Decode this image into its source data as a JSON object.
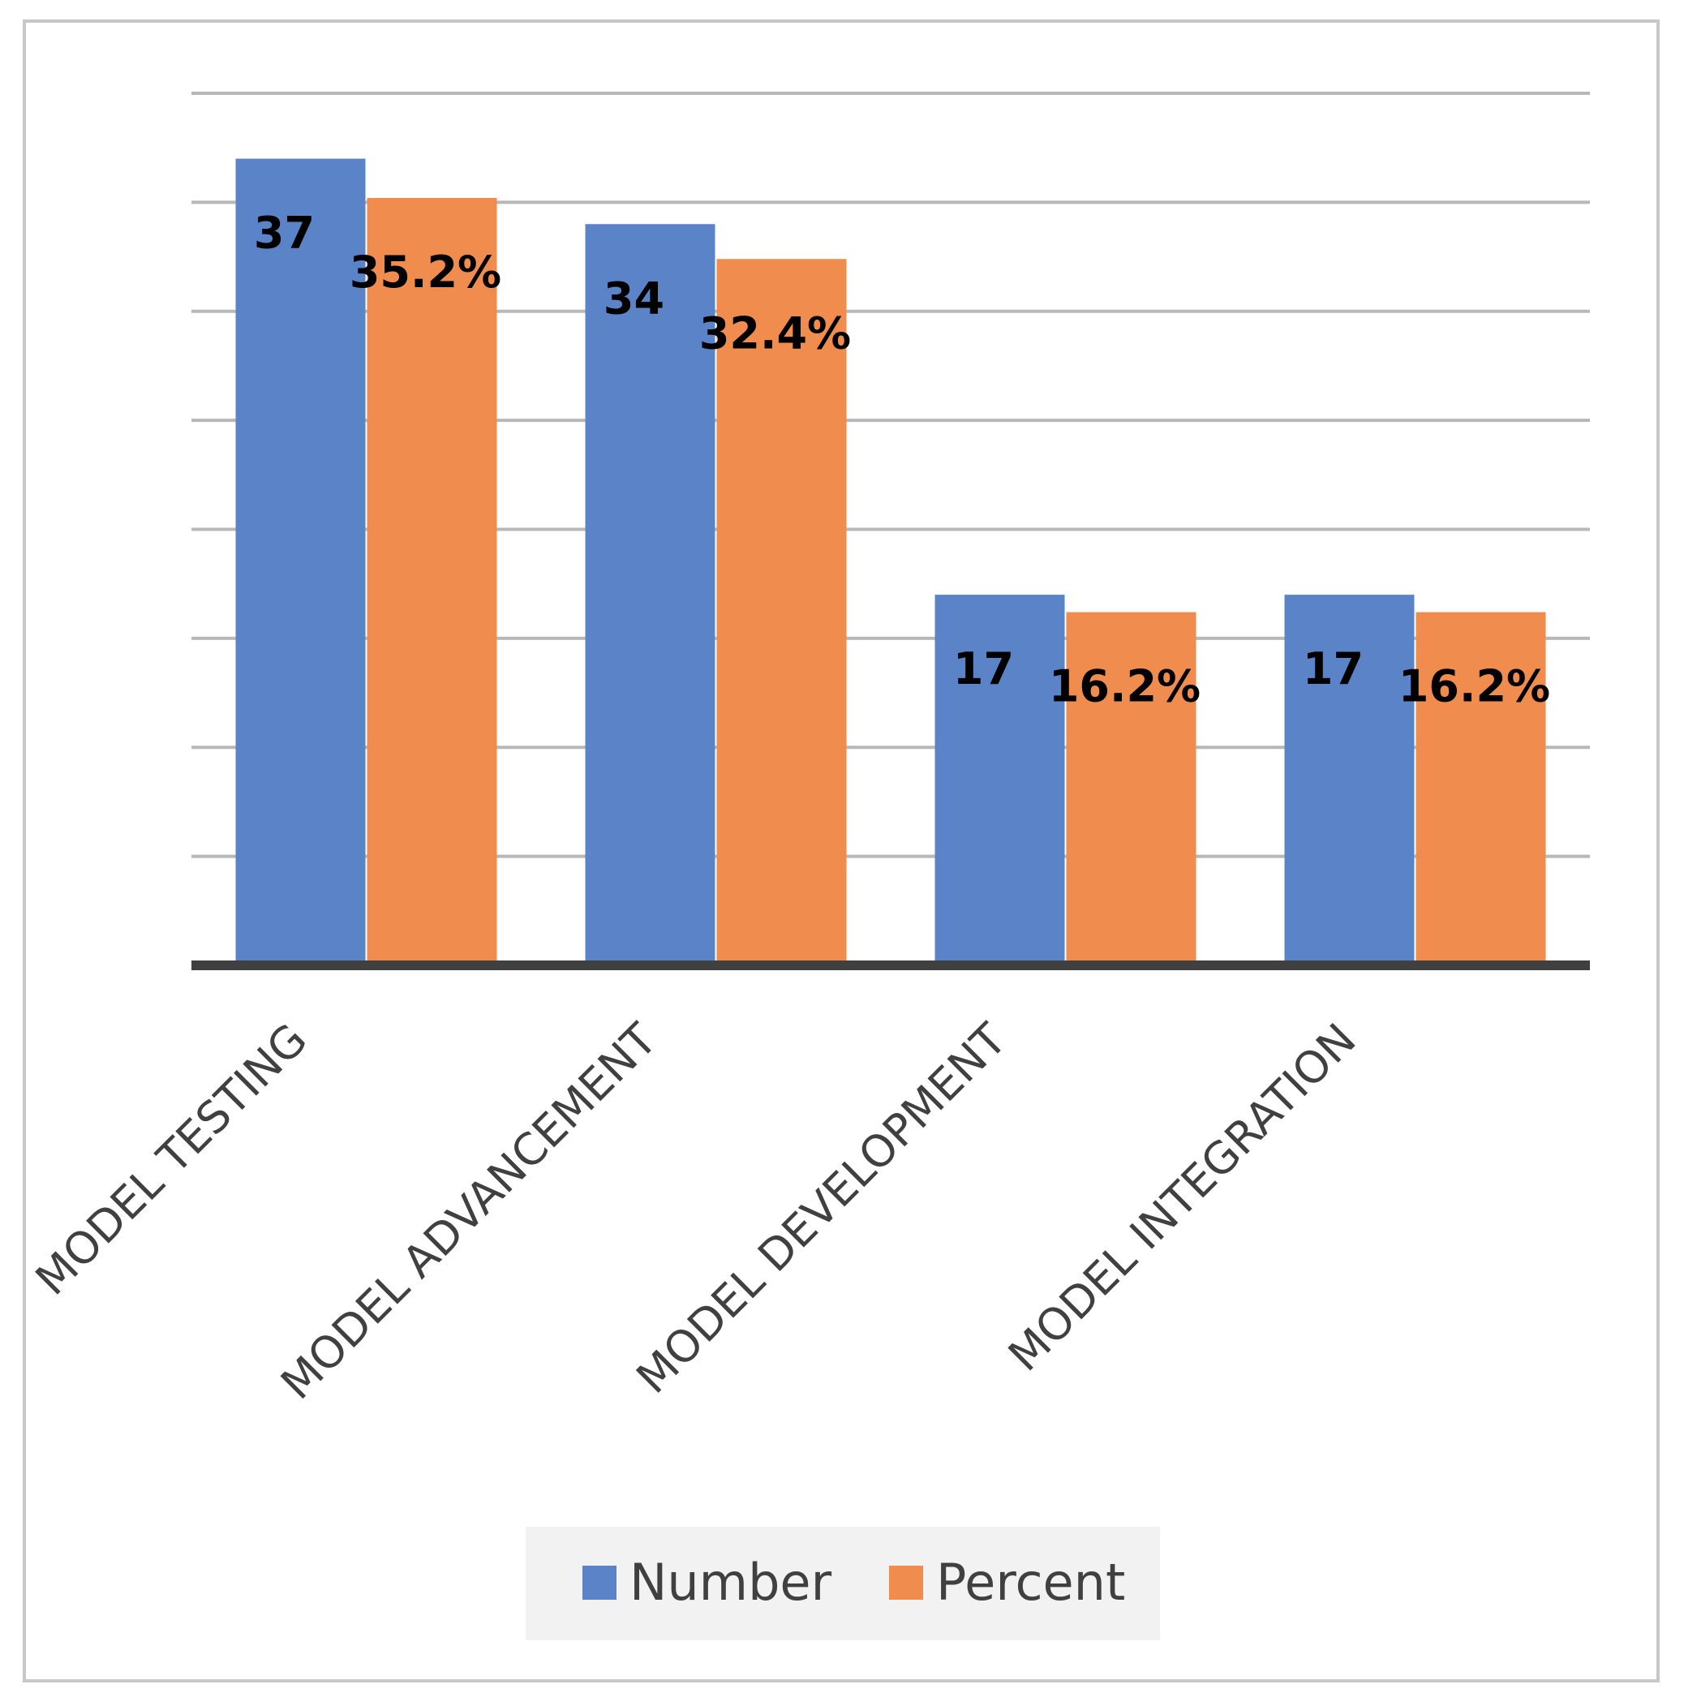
{
  "chart_data": {
    "type": "bar",
    "categories": [
      "MODEL TESTING",
      "MODEL ADVANCEMENT",
      "MODEL DEVELOPMENT",
      "MODEL INTEGRATION"
    ],
    "series": [
      {
        "name": "Number",
        "values": [
          37,
          34,
          17,
          17
        ],
        "labels": [
          "37",
          "34",
          "17",
          "17"
        ],
        "color": "#5b84c8"
      },
      {
        "name": "Percent",
        "values": [
          35.2,
          32.4,
          16.2,
          16.2
        ],
        "labels": [
          "35.2%",
          "32.4%",
          "16.2%",
          "16.2%"
        ],
        "color": "#ef8c4e"
      }
    ],
    "ylim": [
      0,
      40
    ],
    "grid": true,
    "legend": "bottom",
    "colors": {
      "grid": "#b8b8b8",
      "axis": "#404040",
      "legend_bg": "#f2f2f2"
    }
  }
}
